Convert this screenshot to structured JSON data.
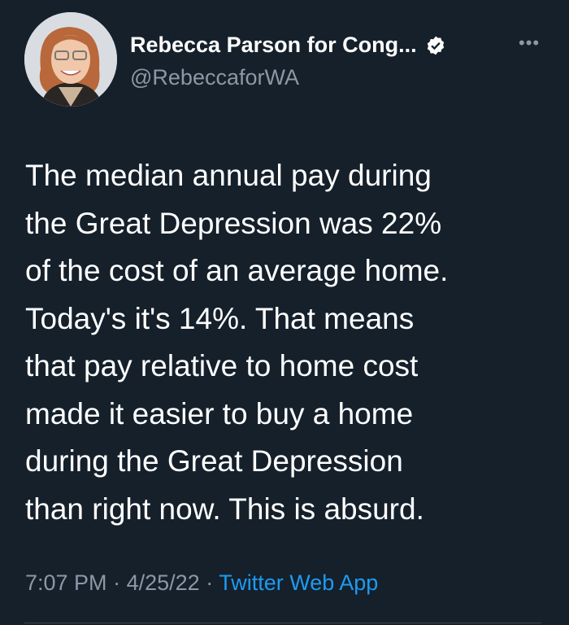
{
  "author": {
    "display_name": "Rebecca Parson for Cong...",
    "handle": "@RebeccaforWA",
    "verified": true
  },
  "icons": {
    "verified": "verified-badge-icon",
    "more": "more-horizontal-icon"
  },
  "tweet": {
    "lines": [
      "The median annual pay during",
      "the Great Depression was 22%",
      "of the cost of an average home.",
      "Today's it's 14%. That means",
      "that pay relative to home cost",
      "made it easier to buy a home",
      "during the Great Depression",
      "than right now. This is absurd."
    ],
    "time": "7:07 PM",
    "date": "4/25/22",
    "separator": "·",
    "source": "Twitter Web App"
  },
  "colors": {
    "background": "#15202b",
    "link": "#1d9bf0",
    "muted": "#8b98a5"
  }
}
